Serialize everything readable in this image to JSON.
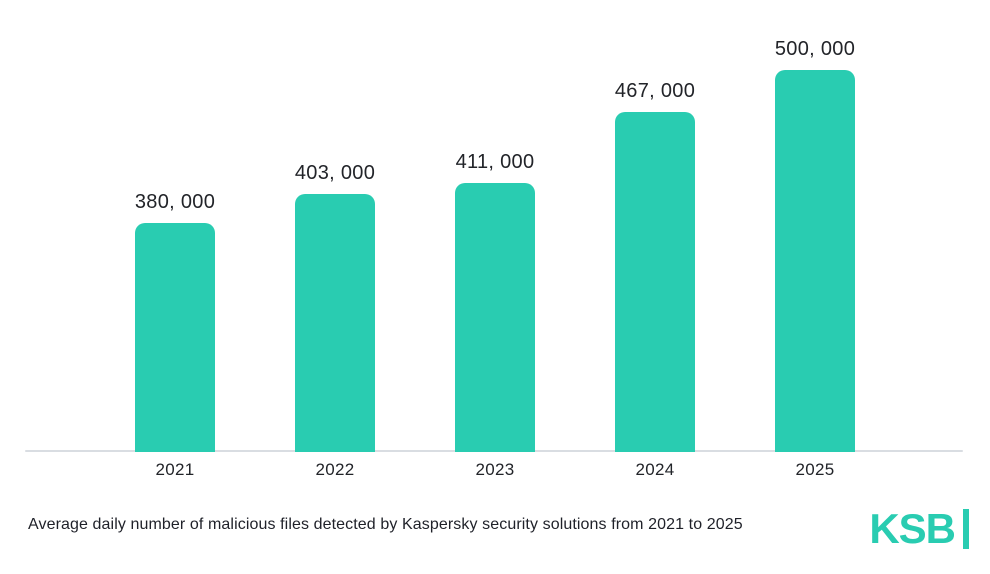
{
  "page": {
    "background": "#ffffff"
  },
  "chart_data": {
    "type": "bar",
    "categories": [
      "2021",
      "2022",
      "2023",
      "2024",
      "2025"
    ],
    "values": [
      380000,
      403000,
      411000,
      467000,
      500000
    ],
    "value_labels": [
      "380, 000",
      "403, 000",
      "411, 000",
      "467, 000",
      "500, 000"
    ],
    "title": "",
    "xlabel": "",
    "ylabel": "",
    "ylim": [
      200000,
      500000
    ],
    "grid": false,
    "legend": false,
    "bar_color": "#29ccb1",
    "baseline_color": "#d9dde2",
    "label_color": "#222429"
  },
  "caption": {
    "text": "Average daily number of malicious files detected by Kaspersky security solutions from 2021 to 2025"
  },
  "logo": {
    "text": "KSB",
    "color": "#29ccb1"
  }
}
